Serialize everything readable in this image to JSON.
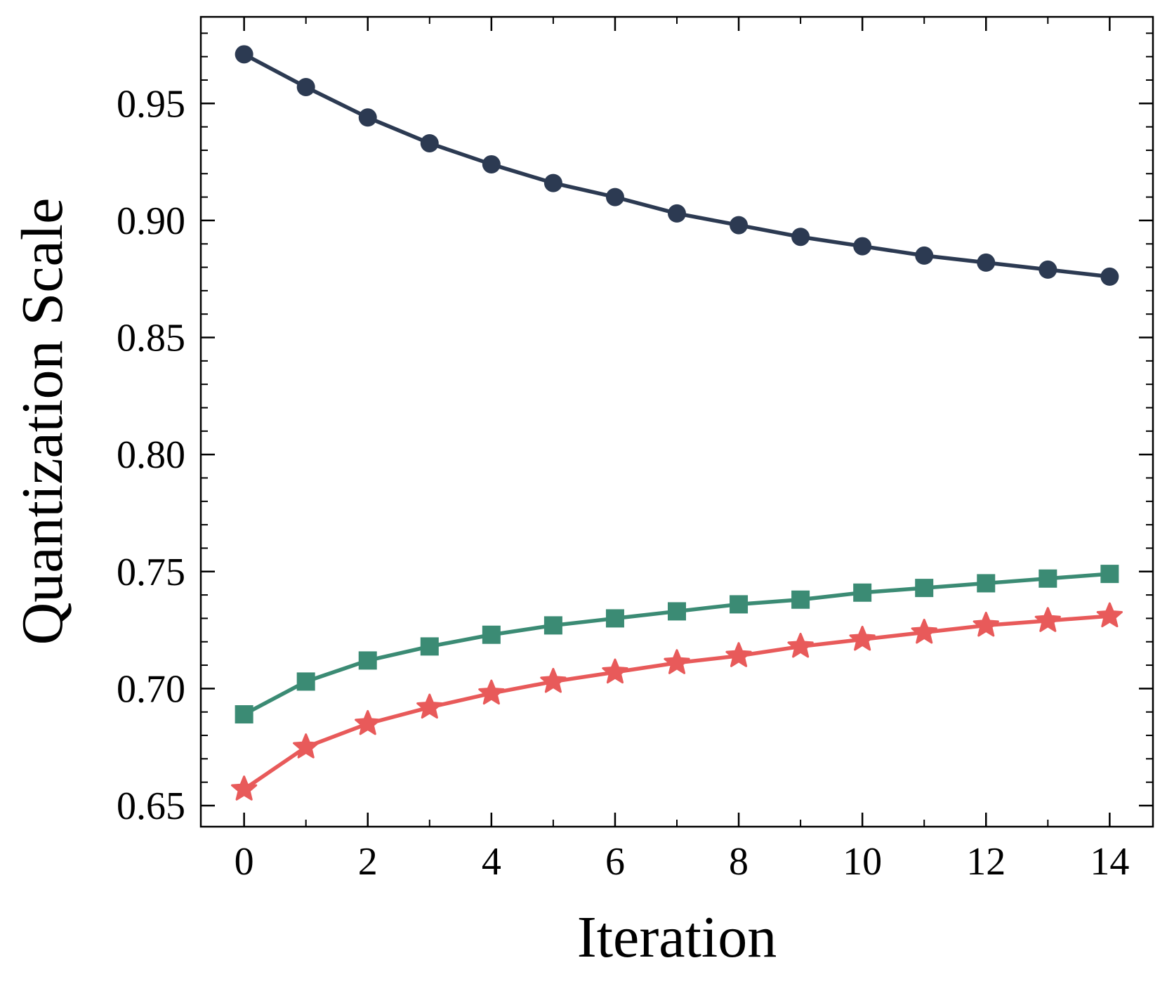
{
  "chart_data": {
    "type": "line",
    "title": "",
    "xlabel": "Iteration",
    "ylabel": "Quantization Scale",
    "xlim": [
      -0.7,
      14.7
    ],
    "ylim": [
      0.641,
      0.987
    ],
    "x_ticks": [
      0,
      2,
      4,
      6,
      8,
      10,
      12,
      14
    ],
    "x_tick_labels": [
      "0",
      "2",
      "4",
      "6",
      "8",
      "10",
      "12",
      "14"
    ],
    "y_ticks": [
      0.65,
      0.7,
      0.75,
      0.8,
      0.85,
      0.9,
      0.95
    ],
    "y_tick_labels": [
      "0.65",
      "0.70",
      "0.75",
      "0.80",
      "0.85",
      "0.90",
      "0.95"
    ],
    "grid": false,
    "legend": "none",
    "x": [
      0,
      1,
      2,
      3,
      4,
      5,
      6,
      7,
      8,
      9,
      10,
      11,
      12,
      13,
      14
    ],
    "series": [
      {
        "name": "series-circle",
        "marker": "circle",
        "color": "#2c3a52",
        "values": [
          0.971,
          0.957,
          0.944,
          0.933,
          0.924,
          0.916,
          0.91,
          0.903,
          0.898,
          0.893,
          0.889,
          0.885,
          0.882,
          0.879,
          0.876
        ]
      },
      {
        "name": "series-square",
        "marker": "square",
        "color": "#3b8b74",
        "values": [
          0.689,
          0.703,
          0.712,
          0.718,
          0.723,
          0.727,
          0.73,
          0.733,
          0.736,
          0.738,
          0.741,
          0.743,
          0.745,
          0.747,
          0.749
        ]
      },
      {
        "name": "series-star",
        "marker": "star",
        "color": "#e85a5a",
        "values": [
          0.657,
          0.675,
          0.685,
          0.692,
          0.698,
          0.703,
          0.707,
          0.711,
          0.714,
          0.718,
          0.721,
          0.724,
          0.727,
          0.729,
          0.731
        ]
      }
    ]
  }
}
